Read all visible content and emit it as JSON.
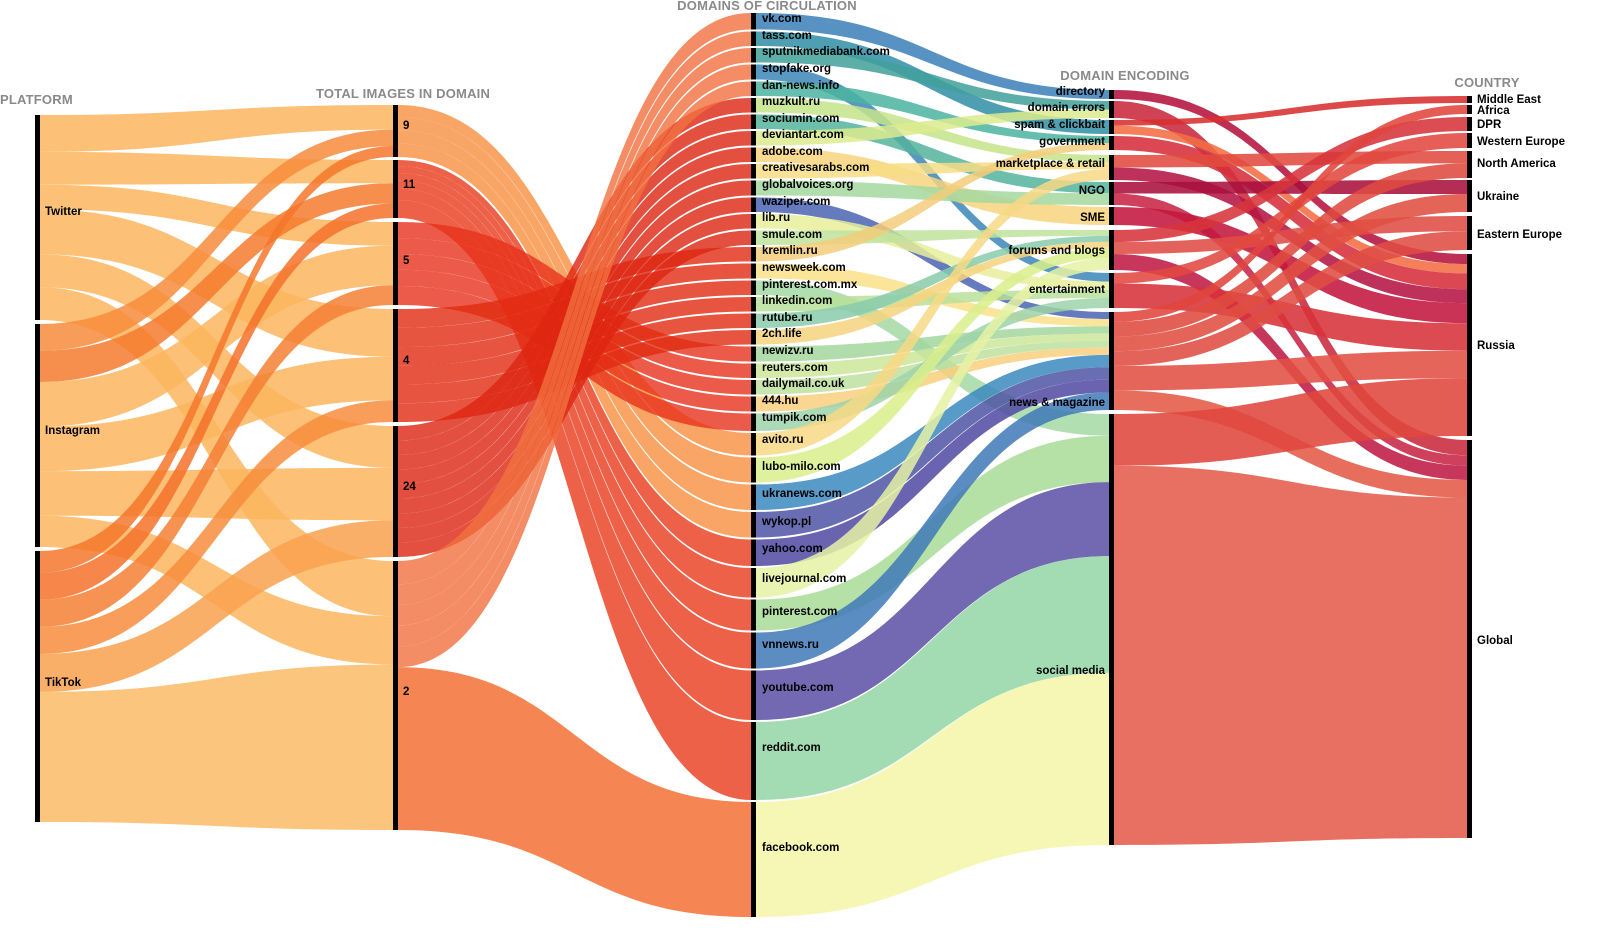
{
  "columns": {
    "platform": "PLATFORM",
    "total_images": "TOTAL IMAGES IN DOMAIN",
    "domains": "DOMAINS OF CIRCULATION",
    "encoding": "DOMAIN ENCODING",
    "country": "COUNTRY"
  },
  "platforms": [
    "Twitter",
    "Instagram",
    "TikTok"
  ],
  "total_images": [
    "9",
    "11",
    "5",
    "4",
    "24",
    "2"
  ],
  "domains": [
    "vk.com",
    "tass.com",
    "sputnikmediabank.com",
    "stopfake.org",
    "dan-news.info",
    "muzkult.ru",
    "sociumin.com",
    "deviantart.com",
    "adobe.com",
    "creativesarabs.com",
    "globalvoices.org",
    "waziper.com",
    "lib.ru",
    "smule.com",
    "kremlin.ru",
    "newsweek.com",
    "pinterest.com.mx",
    "linkedin.com",
    "rutube.ru",
    "2ch.life",
    "newizv.ru",
    "reuters.com",
    "dailymail.co.uk",
    "444.hu",
    "tumpik.com",
    "avito.ru",
    "lubo-milo.com",
    "ukranews.com",
    "wykop.pl",
    "yahoo.com",
    "livejournal.com",
    "pinterest.com",
    "vnnews.ru",
    "youtube.com",
    "reddit.com",
    "facebook.com"
  ],
  "encodings": [
    "directory",
    "domain errors",
    "spam & clickbait",
    "government",
    "marketplace & retail",
    "NGO",
    "SME",
    "forums and blogs",
    "entertainment",
    "news & magazine",
    "social media"
  ],
  "countries": [
    "Middle East",
    "Africa",
    "DPR",
    "Western Europe",
    "North America",
    "Ukraine",
    "Eastern Europe",
    "Russia",
    "Global"
  ],
  "colors": {
    "bar": "#000000",
    "title": "#8a8a8a",
    "platform_flow": "#fbb55e",
    "domain_flow_dark": "#e41a0c",
    "domain_flow_light": "#f4804a",
    "country_flow": "#e0413a",
    "country_flow_dark": "#b5123e"
  }
}
